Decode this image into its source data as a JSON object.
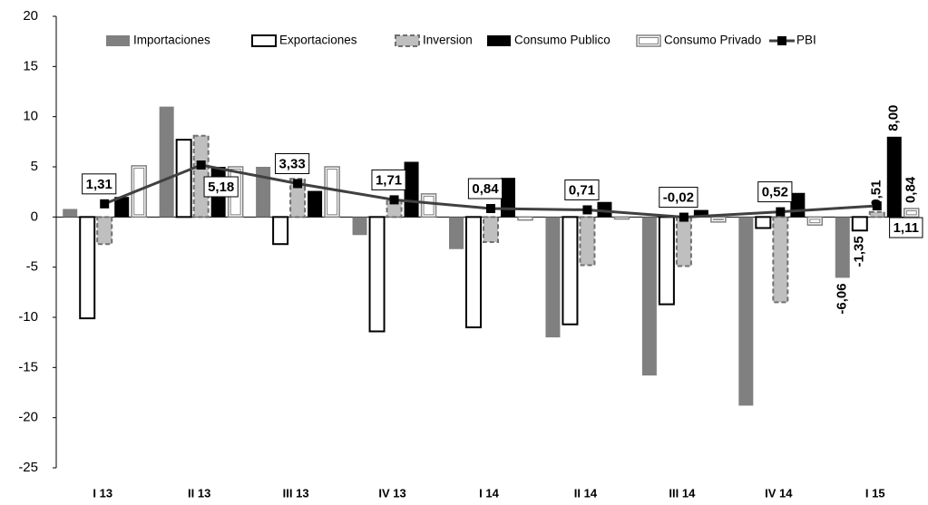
{
  "chart_data": {
    "type": "bar",
    "categories": [
      "I 13",
      "II 13",
      "III 13",
      "IV 13",
      "I 14",
      "II 14",
      "III 14",
      "IV 14",
      "I 15"
    ],
    "series": [
      {
        "name": "Importaciones",
        "color": "#808080",
        "values": [
          0.8,
          11,
          5,
          -1.8,
          -3.2,
          -12,
          -15.8,
          -18.8,
          -6.06
        ],
        "value_labels": [
          null,
          null,
          null,
          null,
          null,
          null,
          null,
          null,
          "-6,06"
        ]
      },
      {
        "name": "Exportaciones",
        "color": "#ffffff",
        "values": [
          -10.1,
          7.7,
          -2.7,
          -11.4,
          -11,
          -10.7,
          -8.7,
          -1.1,
          -1.35
        ],
        "value_labels": [
          null,
          null,
          null,
          null,
          null,
          null,
          null,
          null,
          "-1,35"
        ]
      },
      {
        "name": "Inversion",
        "color": "#bfbfbf",
        "values": [
          -2.7,
          8.1,
          3.8,
          1.7,
          -2.5,
          -4.8,
          -4.9,
          -8.5,
          0.51
        ],
        "value_labels": [
          null,
          null,
          null,
          null,
          null,
          null,
          null,
          null,
          "0,51"
        ]
      },
      {
        "name": "Consumo Publico",
        "color": "#000000",
        "values": [
          2,
          5,
          2.6,
          5.5,
          3.9,
          1.5,
          0.7,
          2.4,
          8.0
        ],
        "value_labels": [
          null,
          null,
          null,
          null,
          null,
          null,
          null,
          null,
          "8,00"
        ]
      },
      {
        "name": "Consumo Privado",
        "color": "#ffffff",
        "values": [
          5.1,
          5.0,
          5.0,
          2.3,
          -0.3,
          -0.2,
          -0.5,
          -0.8,
          0.84
        ],
        "value_labels": [
          null,
          null,
          null,
          null,
          null,
          null,
          null,
          null,
          "0,84"
        ]
      },
      {
        "name": "PBI",
        "type": "line",
        "color": "#404040",
        "values": [
          1.31,
          5.18,
          3.33,
          1.71,
          0.84,
          0.71,
          -0.02,
          0.52,
          1.11
        ],
        "value_labels": [
          "1,31",
          "5,18",
          "3,33",
          "1,71",
          "0,84",
          "0,71",
          "-0,02",
          "0,52",
          "1,11"
        ]
      }
    ],
    "ylim": [
      -25,
      20
    ],
    "yticks": [
      -25,
      -20,
      -15,
      -10,
      -5,
      0,
      5,
      10,
      15,
      20
    ],
    "grid": false,
    "legend": "top"
  }
}
